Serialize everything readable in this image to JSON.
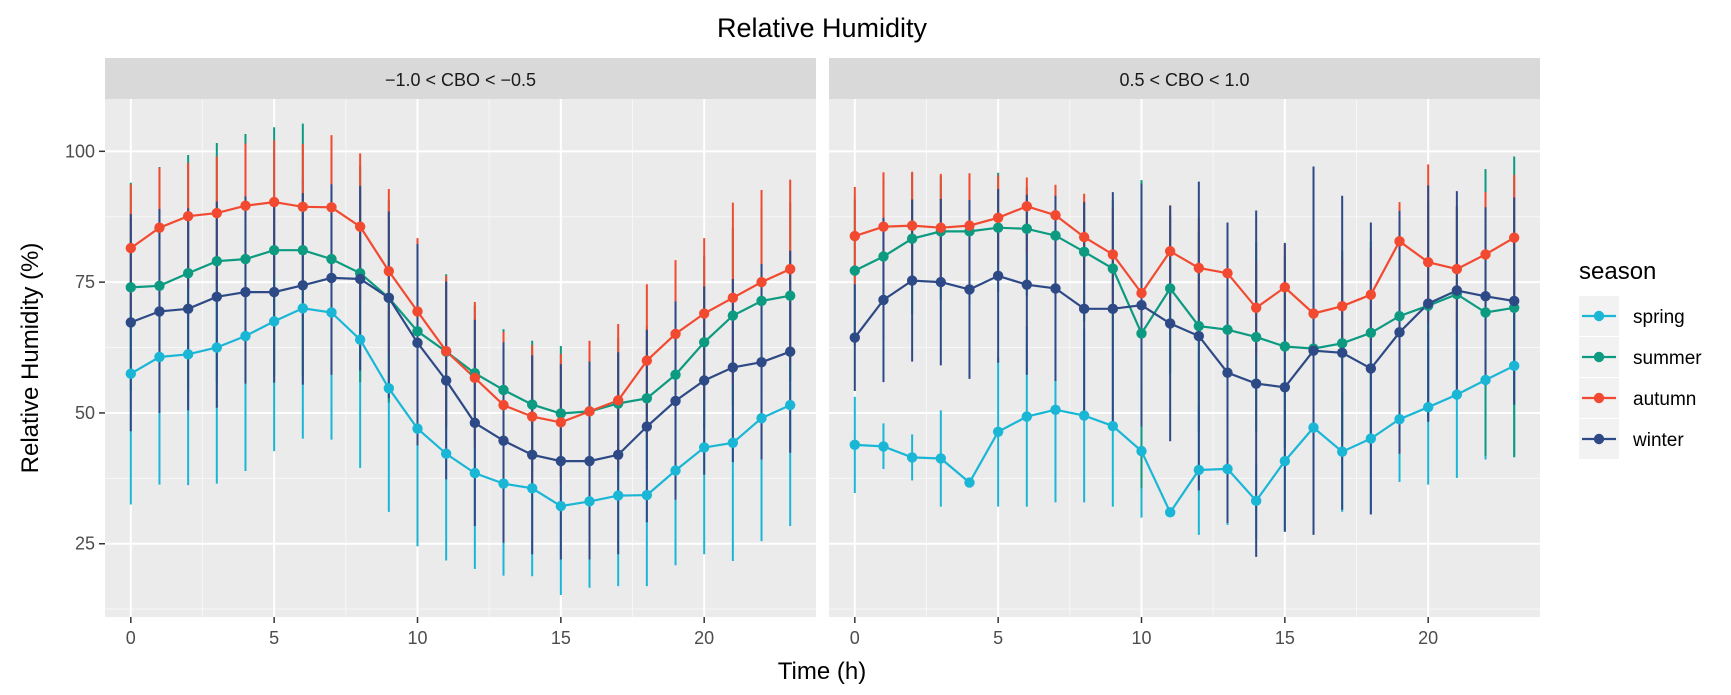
{
  "chart_data": {
    "type": "line",
    "title": "Relative Humidity",
    "xlabel": "Time (h)",
    "ylabel": "Relative Humidity (%)",
    "xlim": [
      -0.9,
      23.9
    ],
    "ylim": [
      11,
      110
    ],
    "x_ticks": [
      0,
      5,
      10,
      15,
      20
    ],
    "y_ticks": [
      25,
      50,
      75,
      100
    ],
    "grid": true,
    "error_bars": true,
    "legend": {
      "title": "season",
      "position": "right",
      "entries": [
        "spring",
        "summer",
        "autumn",
        "winter"
      ]
    },
    "colors": {
      "spring": "#1ab6d6",
      "summer": "#0c9a80",
      "autumn": "#f24a31",
      "winter": "#2e4a86"
    },
    "panels": [
      {
        "label": "−1.0 < CBO < −0.5",
        "series": [
          {
            "name": "spring",
            "values": [
              57.5,
              60.7,
              61.2,
              62.5,
              64.7,
              67.5,
              70,
              69.2,
              64,
              54.7,
              47,
              42.2,
              38.5,
              36.5,
              35.6,
              32.2,
              33.1,
              34.2,
              34.3,
              39,
              43.4,
              44.3,
              49,
              51.5
            ],
            "err_low": [
              32.5,
              36.3,
              36.2,
              36.5,
              38.9,
              42.7,
              45.1,
              44.9,
              39.5,
              31.1,
              24.5,
              21.8,
              20.2,
              18.9,
              18.8,
              15.2,
              16.6,
              16.9,
              16.9,
              20.9,
              23,
              21.7,
              25.5,
              28.4
            ],
            "err_high": [
              87,
              88.8,
              86.2,
              87,
              90.9,
              90.9,
              94.9,
              94,
              87,
              79,
              68,
              60,
              57,
              54,
              53,
              47,
              48,
              50,
              52,
              58,
              64,
              66,
              71,
              75
            ]
          },
          {
            "name": "summer",
            "values": [
              74,
              74.3,
              76.7,
              79,
              79.4,
              81.1,
              81.1,
              79.4,
              76.7,
              72,
              65.6,
              61.7,
              57.6,
              54.4,
              51.6,
              49.9,
              50.3,
              51.8,
              52.8,
              57.3,
              63.5,
              68.6,
              71.4,
              72.4
            ],
            "err_low": [
              54.2,
              52.9,
              54.2,
              55.8,
              55.8,
              57,
              57,
              57.3,
              55.9,
              52,
              47.8,
              47.1,
              44.8,
              41.4,
              38.9,
              37.7,
              38.1,
              38.8,
              39.2,
              41.7,
              47.1,
              51.4,
              53.6,
              56.1
            ],
            "err_high": [
              94,
              97,
              99.3,
              101.6,
              103.3,
              104.6,
              105.3,
              101.8,
              97.3,
              90.8,
              83.3,
              76.5,
              70.5,
              66,
              63.8,
              62.8,
              62.6,
              64.4,
              66.6,
              72.3,
              79.9,
              85.3,
              88.9,
              90.2
            ]
          },
          {
            "name": "autumn",
            "values": [
              81.5,
              85.4,
              87.6,
              88.2,
              89.6,
              90.3,
              89.4,
              89.3,
              85.6,
              77.1,
              69.4,
              61.8,
              56.7,
              51.5,
              49.3,
              48.2,
              50.3,
              52.4,
              60,
              65.1,
              69,
              72,
              75,
              77.5
            ],
            "err_low": [
              69.1,
              71.8,
              73.8,
              74.1,
              75.8,
              75.8,
              74.6,
              76,
              71.5,
              61.3,
              55,
              47.5,
              43.3,
              38.2,
              35.9,
              36.3,
              37.8,
              39.5,
              45.2,
              48.8,
              52.7,
              55.5,
              58,
              59.7
            ],
            "err_high": [
              93.7,
              96.9,
              97.8,
              99,
              101.5,
              102.1,
              101.4,
              103.1,
              99.6,
              92.8,
              83.4,
              76.2,
              71.2,
              65.5,
              63,
              61.3,
              63.8,
              67,
              74.6,
              79.2,
              83.4,
              90.2,
              92.6,
              94.6
            ]
          },
          {
            "name": "winter",
            "values": [
              67.3,
              69.4,
              69.9,
              72.2,
              73.1,
              73.1,
              74.4,
              75.8,
              75.6,
              72,
              63.4,
              56.2,
              48.1,
              44.7,
              42,
              40.8,
              40.8,
              42,
              47.4,
              52.3,
              56.2,
              58.7,
              59.7,
              61.7
            ],
            "err_low": [
              46.5,
              50,
              50.5,
              51,
              55.6,
              55.8,
              55.4,
              57.3,
              58.1,
              52.8,
              43.8,
              37.3,
              28.4,
              25.2,
              23,
              22,
              22,
              23,
              29.1,
              33.4,
              38.2,
              40.6,
              41.1,
              42.4
            ],
            "err_high": [
              88,
              89,
              89.1,
              90.4,
              91.4,
              91.1,
              92,
              93.7,
              93.4,
              88.5,
              82.3,
              75.1,
              67.8,
              63.5,
              61,
              59.3,
              59.8,
              61.6,
              65.9,
              71.3,
              74.2,
              75.6,
              78.5,
              81
            ]
          }
        ]
      },
      {
        "label": "0.5 < CBO < 1.0",
        "series": [
          {
            "name": "spring",
            "values": [
              43.9,
              43.6,
              41.5,
              41.3,
              36.7,
              46.4,
              49.3,
              50.6,
              49.5,
              47.5,
              42.7,
              31,
              39.1,
              39.3,
              33.2,
              40.8,
              47.2,
              42.6,
              45.1,
              48.8,
              51.1,
              53.5,
              56.3,
              59
            ],
            "err_low": [
              34.7,
              39.3,
              37.1,
              32.1,
              36.7,
              32.1,
              32.1,
              32.9,
              32.9,
              32.1,
              30,
              31,
              26.7,
              28.6,
              26,
              27.3,
              30.3,
              31.1,
              30.7,
              36.8,
              36.3,
              37.6,
              41.1,
              41.5
            ],
            "err_high": [
              53.1,
              48,
              45.9,
              50.5,
              36.7,
              60.6,
              66.5,
              68.3,
              66.1,
              62.9,
              55.3,
              31,
              51.5,
              50,
              40.4,
              54.3,
              64.1,
              54.1,
              59.5,
              60.8,
              65.9,
              69.4,
              71.5,
              76.5
            ]
          },
          {
            "name": "summer",
            "values": [
              77.2,
              79.9,
              83.3,
              84.7,
              84.7,
              85.4,
              85.2,
              83.9,
              80.8,
              77.6,
              65.2,
              73.8,
              66.6,
              65.9,
              64.5,
              62.7,
              62.3,
              63.3,
              65.3,
              68.5,
              70.5,
              72.7,
              69.2,
              70.1
            ],
            "err_low": [
              62.9,
              64,
              68.9,
              71.6,
              71.2,
              73.1,
              72.4,
              71.1,
              67.4,
              62.8,
              35.6,
              57.5,
              46.5,
              48.3,
              46.5,
              43.3,
              43.2,
              44.4,
              45.3,
              50.4,
              48.5,
              55.3,
              41.8,
              41.6
            ],
            "err_high": [
              90.8,
              94.5,
              95.8,
              95.2,
              94.8,
              95.9,
              93.1,
              91.8,
              90.5,
              90.7,
              94.5,
              88,
              84.5,
              83.3,
              82.6,
              80,
              79,
              81,
              82.8,
              86.6,
              90.5,
              89.5,
              96.6,
              99
            ]
          },
          {
            "name": "autumn",
            "values": [
              83.8,
              85.6,
              85.8,
              85.4,
              85.8,
              87.3,
              89.5,
              87.8,
              83.6,
              80.3,
              72.9,
              80.9,
              77.7,
              76.7,
              70.1,
              74,
              69,
              70.4,
              72.6,
              82.8,
              78.8,
              77.5,
              80.3,
              83.5
            ],
            "err_low": [
              74.6,
              75.2,
              75.5,
              75.1,
              75.9,
              78.3,
              80.4,
              79.2,
              75.3,
              71.3,
              62.9,
              72.1,
              68.2,
              67.6,
              61.3,
              65.8,
              60.2,
              61.3,
              63.7,
              75.3,
              67.4,
              65.6,
              68.4,
              71.5
            ],
            "err_high": [
              93.2,
              96,
              96.1,
              95.7,
              95.8,
              95.4,
              95,
              93.6,
              91.9,
              89.3,
              82.9,
              89.7,
              87.2,
              85.8,
              78.9,
              82.2,
              77.8,
              79.5,
              81.5,
              90.3,
              97.5,
              89.4,
              92.2,
              95.5
            ]
          },
          {
            "name": "winter",
            "values": [
              64.4,
              71.6,
              75.3,
              75,
              73.6,
              76.2,
              74.5,
              73.8,
              69.9,
              69.9,
              70.6,
              67.1,
              64.7,
              57.7,
              55.6,
              54.9,
              61.9,
              61.5,
              58.5,
              65.4,
              70.9,
              73.4,
              72.3,
              71.4
            ],
            "err_low": [
              54.2,
              55.9,
              59.8,
              59.1,
              56.5,
              59.6,
              57.3,
              56.1,
              49.5,
              47.6,
              47.4,
              44.6,
              35.2,
              29,
              22.5,
              27.3,
              26.7,
              31.5,
              30.6,
              42.2,
              48.3,
              54.4,
              55.3,
              51.6
            ],
            "err_high": [
              74.6,
              87.3,
              90.8,
              90.9,
              90.7,
              92.8,
              91.7,
              91.5,
              90.3,
              92.2,
              93.8,
              89.6,
              94.2,
              86.4,
              88.7,
              82.5,
              97.1,
              91.5,
              86.4,
              88.6,
              93.5,
              92.4,
              89.3,
              91.2
            ]
          }
        ]
      }
    ]
  }
}
